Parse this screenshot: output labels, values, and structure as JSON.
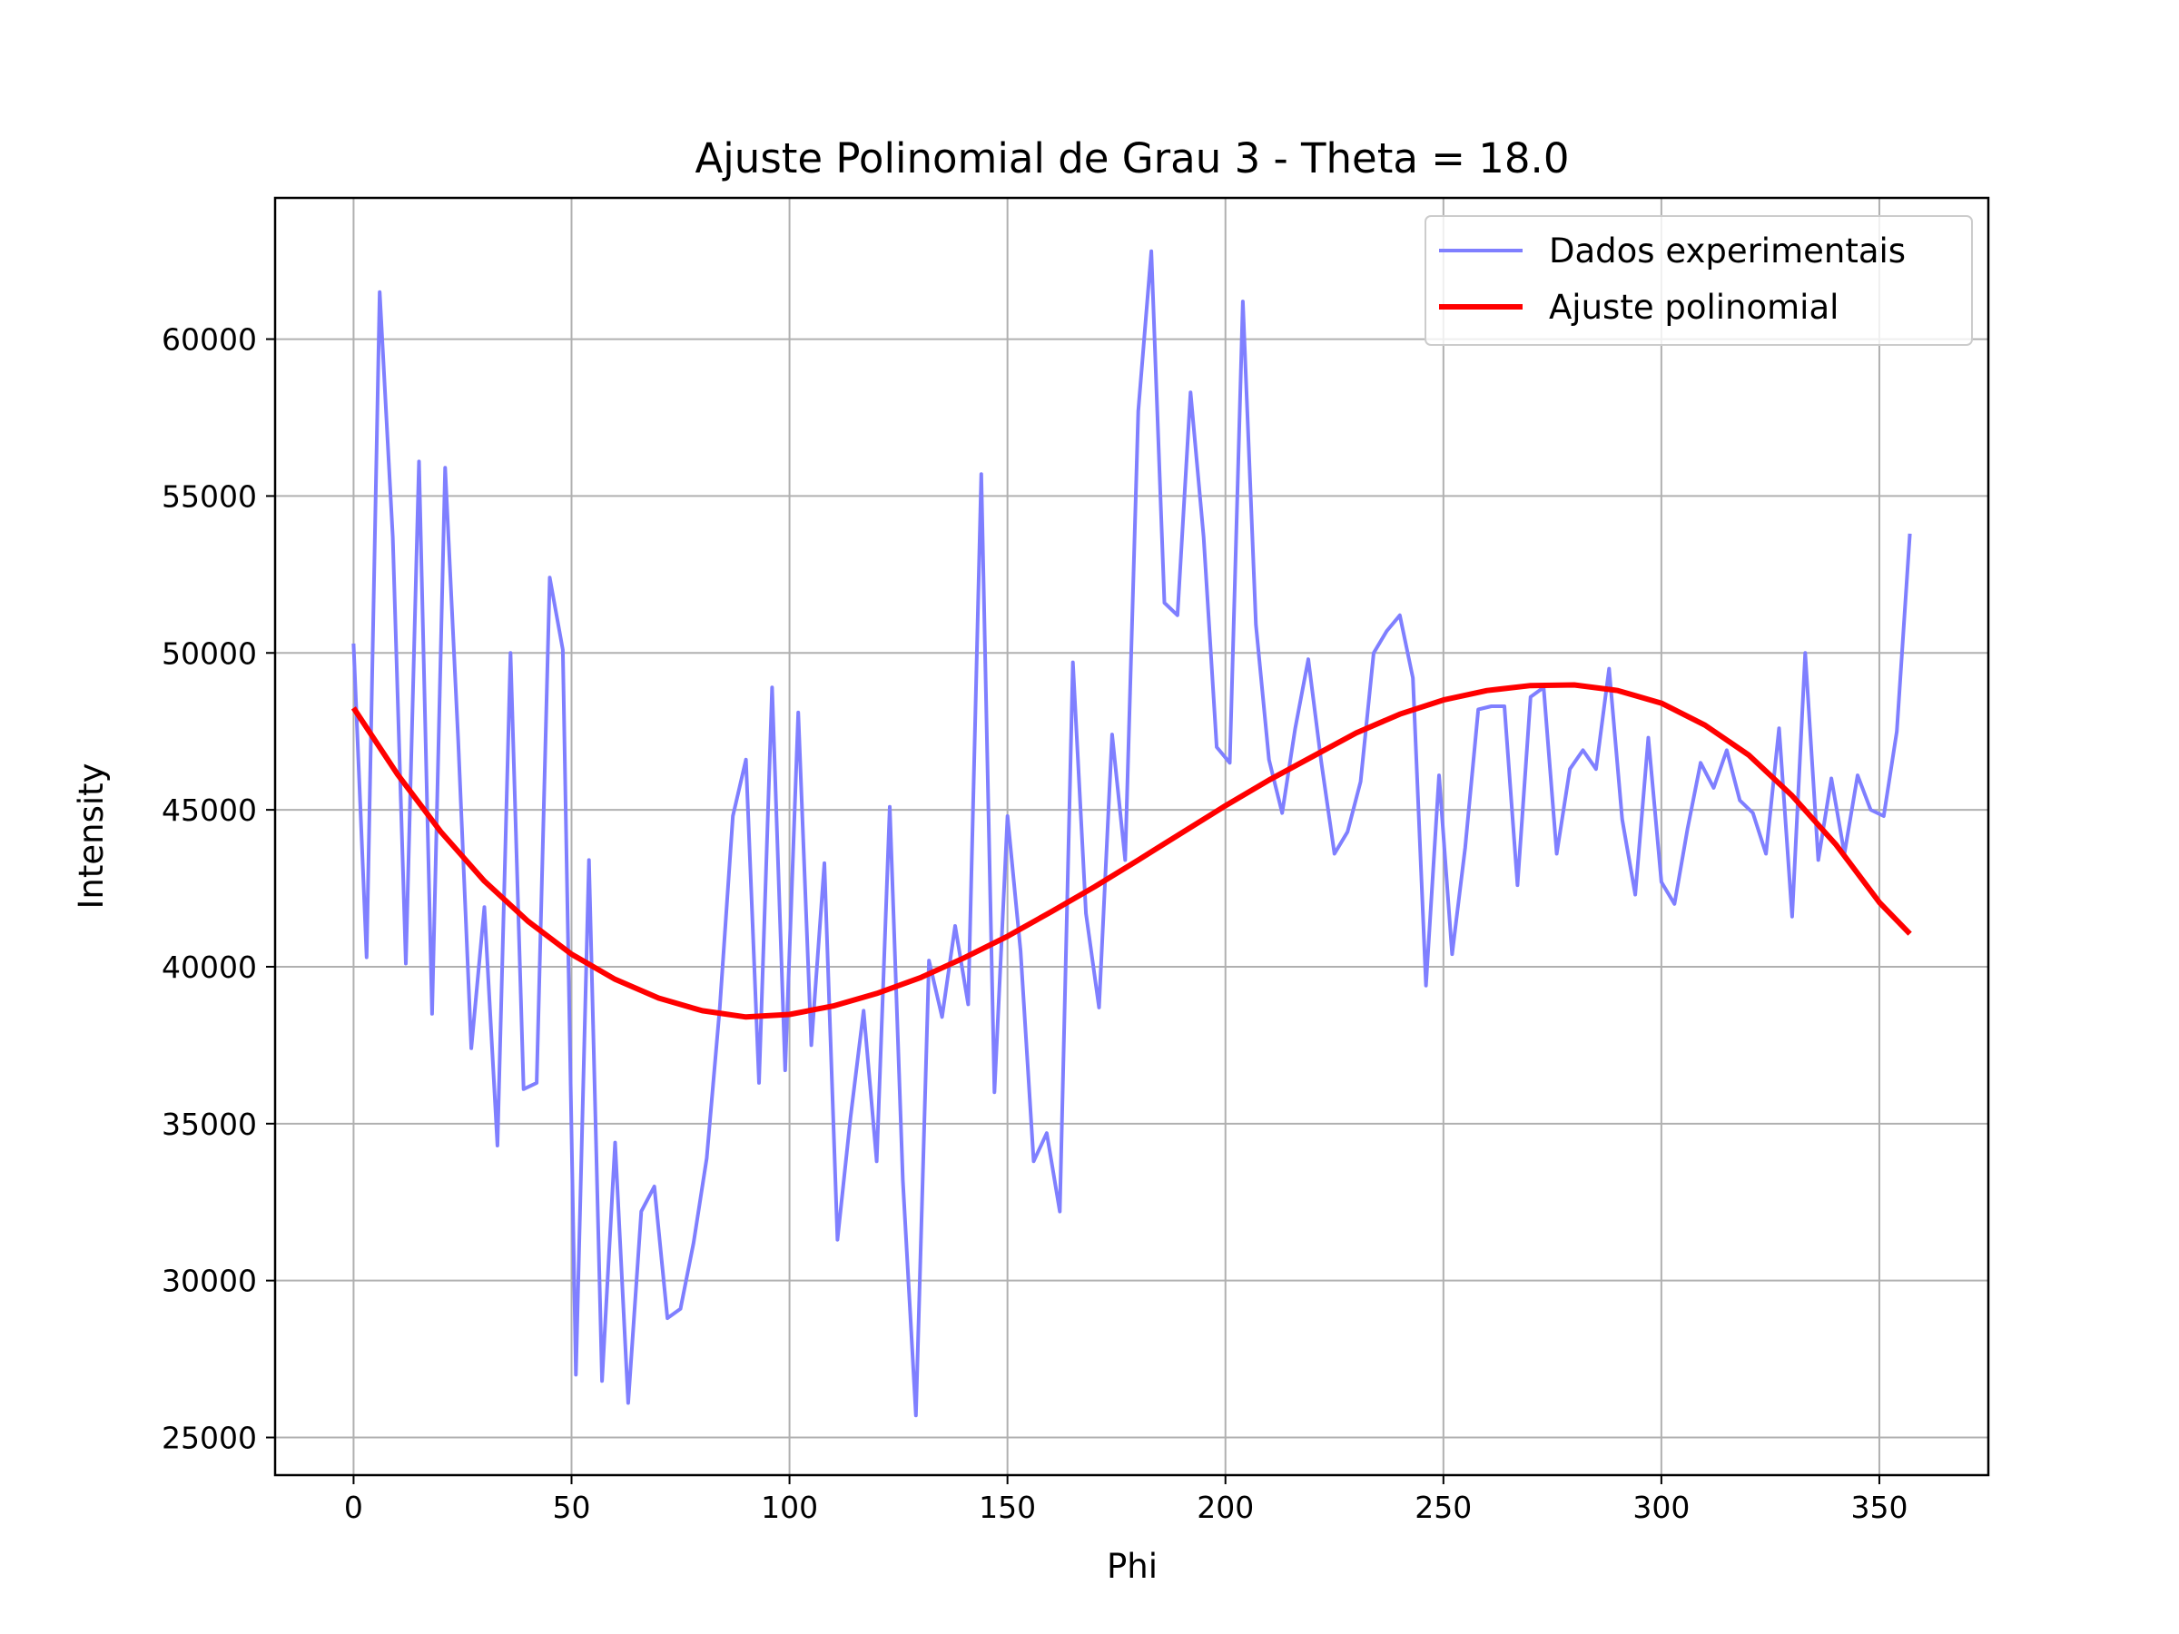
{
  "chart_data": {
    "type": "line",
    "title": "Ajuste Polinomial de Grau 3 - Theta = 18.0",
    "xlabel": "Phi",
    "ylabel": "Intensity",
    "xlim": [
      -18,
      375
    ],
    "ylim": [
      23800,
      64500
    ],
    "xticks": [
      0,
      50,
      100,
      150,
      200,
      250,
      300,
      350
    ],
    "yticks": [
      25000,
      30000,
      35000,
      40000,
      45000,
      50000,
      55000,
      60000
    ],
    "grid": true,
    "legend_position": "top-right",
    "legend": [
      "Dados experimentais",
      "Ajuste polinomial"
    ],
    "series": [
      {
        "name": "Dados experimentais",
        "color": "#7f7fff",
        "x": [
          0,
          3,
          6,
          9,
          12,
          15,
          18,
          21,
          24,
          27,
          30,
          33,
          36,
          39,
          42,
          45,
          48,
          51,
          54,
          57,
          60,
          63,
          66,
          69,
          72,
          75,
          78,
          81,
          84,
          87,
          90,
          93,
          96,
          99,
          102,
          105,
          108,
          111,
          114,
          117,
          120,
          123,
          126,
          129,
          132,
          135,
          138,
          141,
          144,
          147,
          150,
          153,
          156,
          159,
          162,
          165,
          168,
          171,
          174,
          177,
          180,
          183,
          186,
          189,
          192,
          195,
          198,
          201,
          204,
          207,
          210,
          213,
          216,
          219,
          222,
          225,
          228,
          231,
          234,
          237,
          240,
          243,
          246,
          249,
          252,
          255,
          258,
          261,
          264,
          267,
          270,
          273,
          276,
          279,
          282,
          285,
          288,
          291,
          294,
          297,
          300,
          303,
          306,
          309,
          312,
          315,
          318,
          321,
          324,
          327,
          330,
          333,
          336,
          339,
          342,
          345,
          348,
          351,
          354,
          357
        ],
        "y": [
          50300,
          40300,
          61500,
          53700,
          40100,
          56100,
          38500,
          55900,
          47200,
          37400,
          41900,
          34300,
          50000,
          36100,
          36300,
          52400,
          50100,
          27000,
          43400,
          26800,
          34400,
          26100,
          32200,
          33000,
          28800,
          29100,
          31200,
          33900,
          38700,
          44800,
          46600,
          36300,
          48900,
          36700,
          48100,
          37500,
          43300,
          31300,
          35200,
          38600,
          33800,
          45100,
          33200,
          25700,
          40200,
          38400,
          41300,
          38800,
          55700,
          36000,
          44800,
          40500,
          33800,
          34700,
          32200,
          49700,
          41700,
          38700,
          47400,
          43400,
          57700,
          62800,
          51600,
          51200,
          58300,
          53700,
          47000,
          46500,
          61200,
          50900,
          46600,
          44900,
          47600,
          49800,
          46500,
          43600,
          44300,
          45900,
          50000,
          50700,
          51200,
          49200,
          39400,
          46100,
          40400,
          43800,
          48200,
          48300,
          48300,
          42600,
          48600,
          48900,
          43600,
          46300,
          46900,
          46300,
          49500,
          44700,
          42300,
          47300,
          42700,
          42000,
          44400,
          46500,
          45700,
          46900,
          45300,
          44900,
          43600,
          47600,
          41600,
          50000,
          43400,
          46000,
          43600,
          46100,
          45000,
          44800,
          47500,
          53800
        ]
      },
      {
        "name": "Ajuste polinomial",
        "color": "#ff0000",
        "x": [
          0,
          10,
          20,
          30,
          40,
          50,
          60,
          70,
          80,
          90,
          100,
          110,
          120,
          130,
          140,
          150,
          160,
          170,
          180,
          190,
          200,
          210,
          220,
          230,
          240,
          250,
          260,
          270,
          280,
          290,
          300,
          310,
          320,
          330,
          340,
          350,
          357
        ],
        "y": [
          48250,
          46150,
          44300,
          42730,
          41450,
          40400,
          39600,
          39000,
          38600,
          38400,
          38480,
          38750,
          39150,
          39650,
          40280,
          40970,
          41750,
          42550,
          43400,
          44270,
          45130,
          45950,
          46700,
          47450,
          48050,
          48500,
          48800,
          48960,
          48980,
          48800,
          48400,
          47700,
          46750,
          45450,
          43900,
          42050,
          41050
        ]
      }
    ]
  }
}
